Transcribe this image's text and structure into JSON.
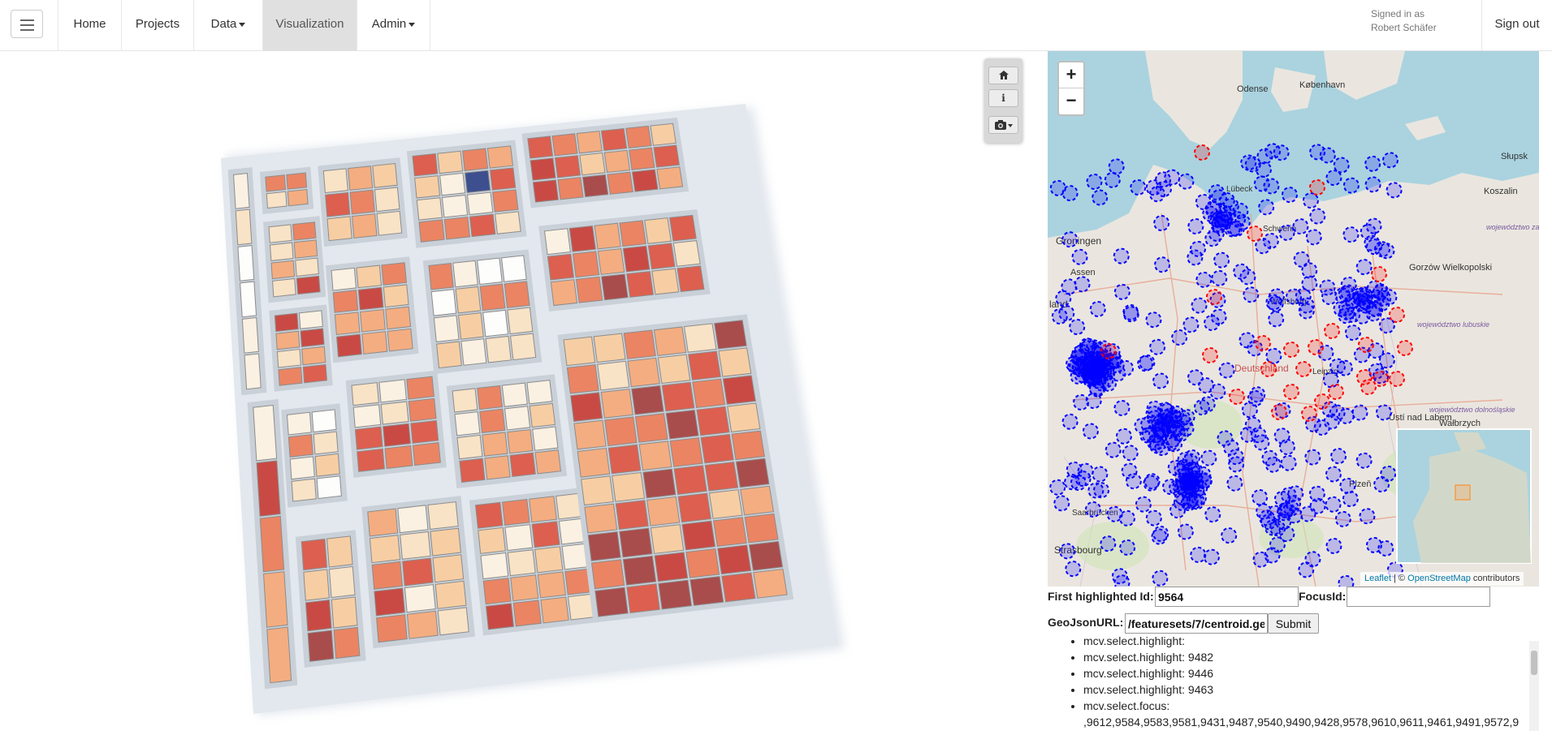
{
  "nav": {
    "home": "Home",
    "projects": "Projects",
    "data": "Data",
    "visualization": "Visualization",
    "admin": "Admin",
    "signed_in_as": "Signed in as",
    "user": "Robert Schäfer",
    "sign_out": "Sign out"
  },
  "toolbar": {
    "home_icon": "home-icon",
    "info_icon": "info-icon",
    "camera_icon": "camera-icon"
  },
  "map": {
    "zoom_in": "+",
    "zoom_out": "−",
    "labels": {
      "odense": "Odense",
      "kobenhavn": "København",
      "slupsk": "Słupsk",
      "koszalin": "Koszalin",
      "groningen": "Groningen",
      "assen": "Assen",
      "gorzow": "Gorzów Wielkopolski",
      "walbrzych": "Wałbrzych",
      "usti": "Ústí nad Labem",
      "plzen": "Plzeň",
      "strasbourg": "Strasbourg",
      "saarbrucken": "Saarbrücken",
      "lubeck": "Lübeck",
      "schwerin": "Schwerin",
      "wolfsburg": "Wolfsburg",
      "leipzig": "Leipzig",
      "deutschland": "Deutschland",
      "wojewodztwo_zach": "województwo zachodniopomorskie",
      "wojewodztwo_lub": "województwo lubuskie",
      "wojewodztwo_dol": "województwo dolnośląskie",
      "land": "land"
    },
    "attribution_leaflet": "Leaflet",
    "attribution_sep": " | © ",
    "attribution_osm": "OpenStreetMap",
    "attribution_tail": " contributors",
    "colors": {
      "water": "#aad3df",
      "land": "#eae6df",
      "blue": "#0000ff",
      "red": "#ff0000"
    }
  },
  "form": {
    "first_highlighted_label": "First highlighted Id:",
    "first_highlighted_value": "9564",
    "focus_label": "FocusId:",
    "focus_value": "",
    "geojson_label": "GeoJsonURL:",
    "geojson_value": "/featuresets/7/centroid.ge",
    "submit": "Submit"
  },
  "log": [
    "mcv.select.highlight:",
    "mcv.select.highlight: 9482",
    "mcv.select.highlight: 9446",
    "mcv.select.highlight: 9463",
    "mcv.select.focus:",
    ",9612,9584,9583,9581,9431,9487,9540,9490,9428,9578,9610,9611,9461,9491,9572,9"
  ]
}
